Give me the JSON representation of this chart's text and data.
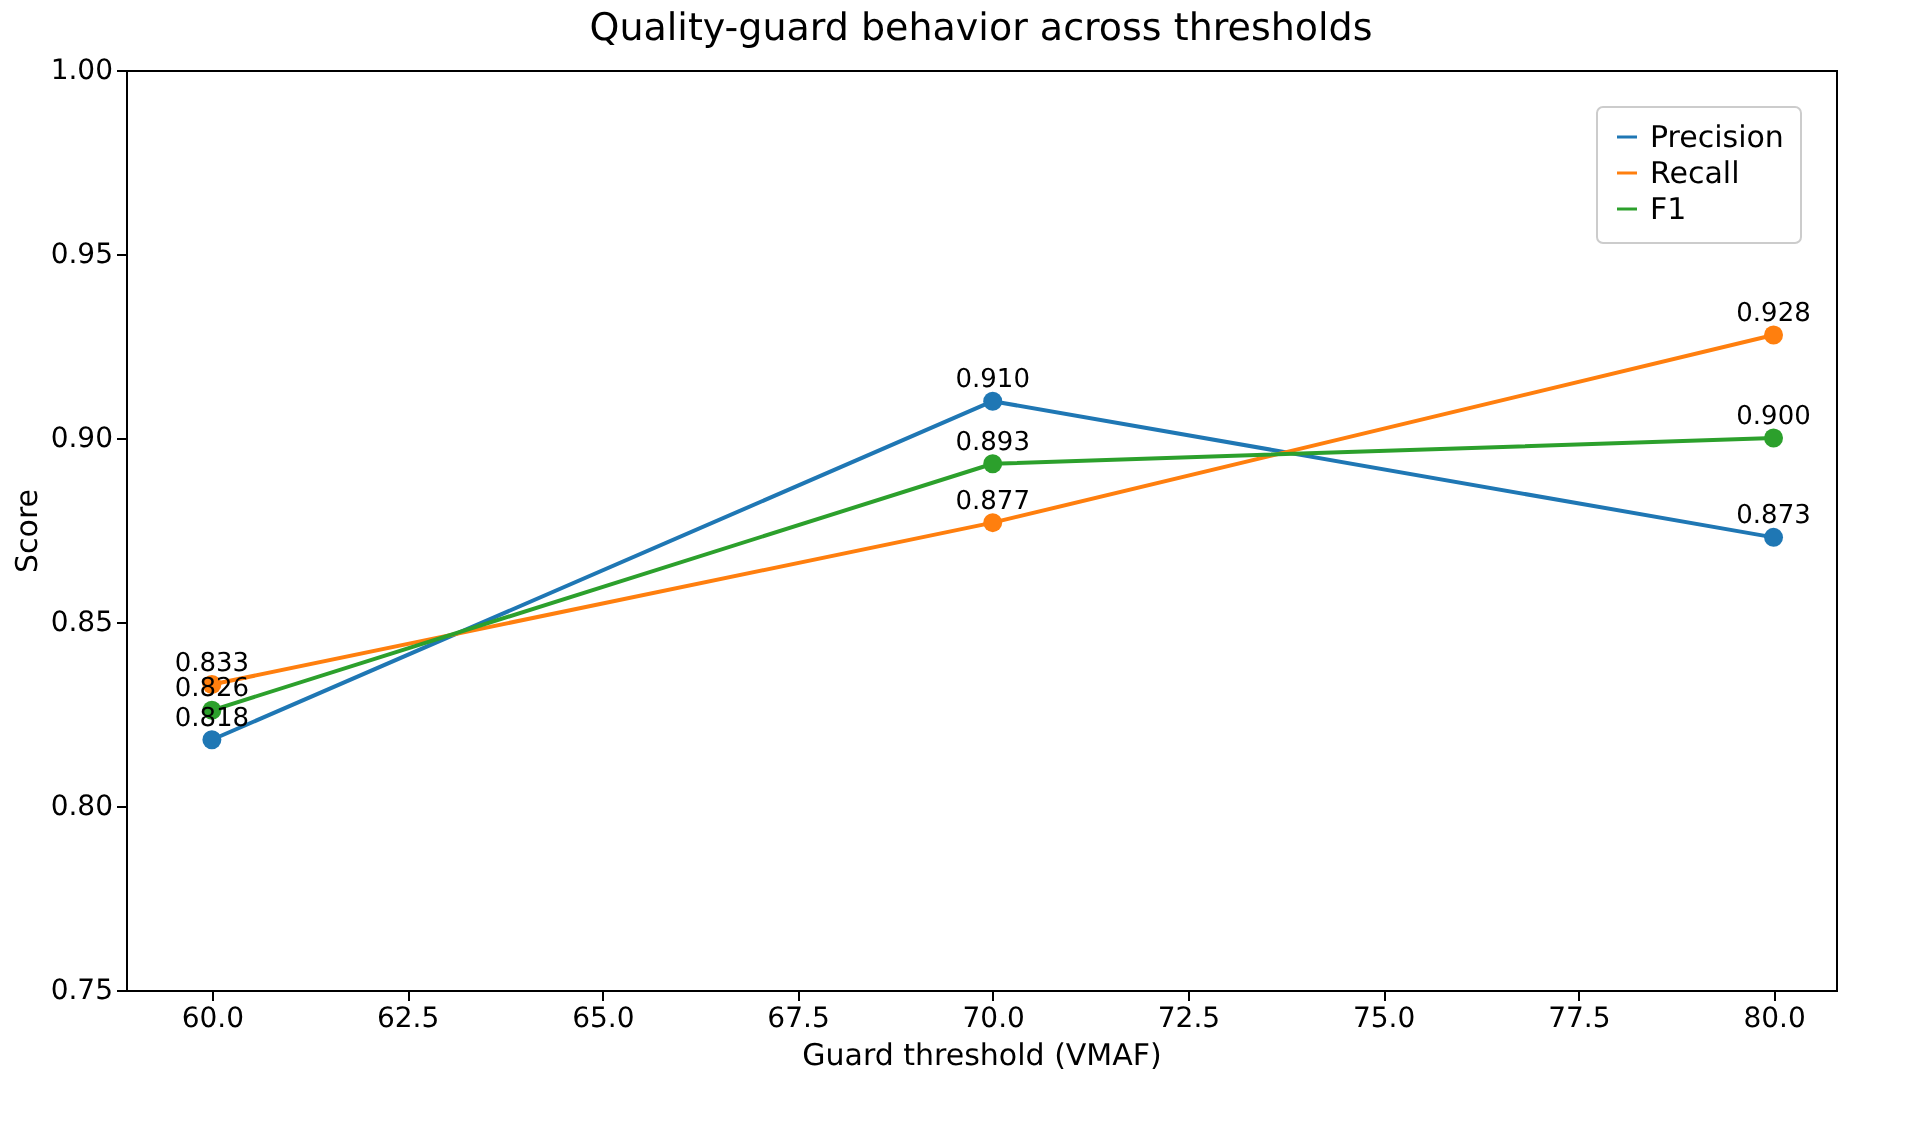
{
  "chart_data": {
    "type": "line",
    "title": "Quality-guard behavior across thresholds",
    "xlabel": "Guard threshold (VMAF)",
    "ylabel": "Score",
    "x": [
      60,
      70,
      80
    ],
    "series": [
      {
        "name": "Precision",
        "color": "#1f77b4",
        "values": [
          0.818,
          0.91,
          0.873
        ],
        "value_labels": [
          "0.818",
          "0.910",
          "0.873"
        ]
      },
      {
        "name": "Recall",
        "color": "#ff7f0e",
        "values": [
          0.833,
          0.877,
          0.928
        ],
        "value_labels": [
          "0.833",
          "0.877",
          "0.928"
        ]
      },
      {
        "name": "F1",
        "color": "#2ca02c",
        "values": [
          0.826,
          0.893,
          0.9
        ],
        "value_labels": [
          "0.826",
          "0.893",
          "0.900"
        ]
      }
    ],
    "xlim": [
      58.9,
      80.8
    ],
    "xticks": [
      {
        "value": 60,
        "label": "60.0"
      },
      {
        "value": 62.5,
        "label": "62.5"
      },
      {
        "value": 65,
        "label": "65.0"
      },
      {
        "value": 67.5,
        "label": "67.5"
      },
      {
        "value": 70,
        "label": "70.0"
      },
      {
        "value": 72.5,
        "label": "72.5"
      },
      {
        "value": 75,
        "label": "75.0"
      },
      {
        "value": 77.5,
        "label": "77.5"
      },
      {
        "value": 80,
        "label": "80.0"
      }
    ],
    "ylim": [
      0.75,
      1.0
    ],
    "yticks": [
      {
        "value": 0.75,
        "label": "0.75"
      },
      {
        "value": 0.8,
        "label": "0.80"
      },
      {
        "value": 0.85,
        "label": "0.85"
      },
      {
        "value": 0.9,
        "label": "0.90"
      },
      {
        "value": 0.95,
        "label": "0.95"
      },
      {
        "value": 1.0,
        "label": "1.00"
      }
    ],
    "legend": "top right",
    "grid": false,
    "marker": "circle",
    "line_style": "solid"
  }
}
